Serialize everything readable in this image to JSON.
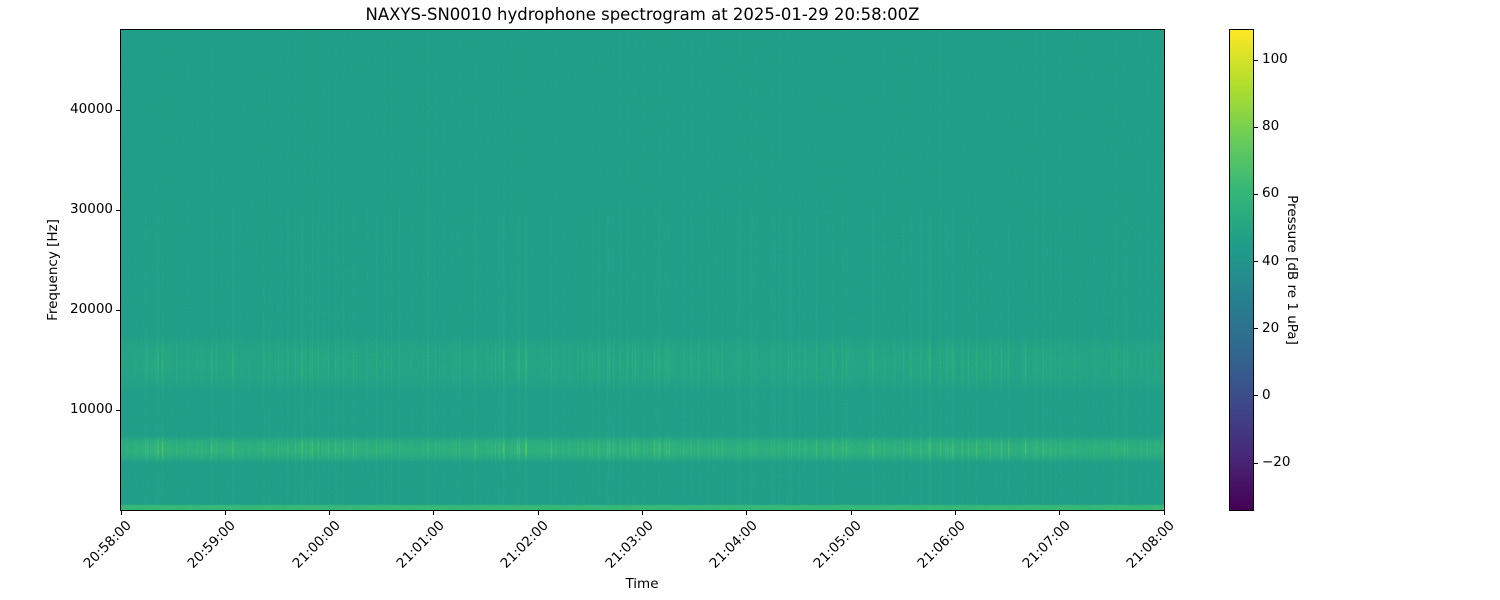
{
  "chart_data": {
    "type": "heatmap",
    "title": "NAXYS-SN0010 hydrophone spectrogram at 2025-01-29 20:58:00Z",
    "xlabel": "Time",
    "ylabel": "Frequency [Hz]",
    "xlim": [
      "20:58:00",
      "21:08:00"
    ],
    "ylim": [
      0,
      48000
    ],
    "x_ticks": [
      "20:58:00",
      "20:59:00",
      "21:00:00",
      "21:01:00",
      "21:02:00",
      "21:03:00",
      "21:04:00",
      "21:05:00",
      "21:06:00",
      "21:07:00",
      "21:08:00"
    ],
    "y_ticks": [
      10000,
      20000,
      30000,
      40000
    ],
    "colormap": "viridis",
    "colorbar": {
      "label": "Pressure [dB re 1 uPa]",
      "range": [
        -34,
        109
      ],
      "ticks": [
        -20,
        0,
        20,
        40,
        60,
        80,
        100
      ]
    },
    "features": {
      "background_level_db": 46,
      "bands": [
        {
          "freq_range_hz": [
            4800,
            7500
          ],
          "typical_db": 55,
          "peak_db": 75
        },
        {
          "freq_range_hz": [
            12000,
            17500
          ],
          "typical_db": 49,
          "peak_db": 62
        },
        {
          "freq_range_hz": [
            0,
            500
          ],
          "typical_db": 62,
          "peak_db": 66
        }
      ]
    },
    "grid": false
  }
}
